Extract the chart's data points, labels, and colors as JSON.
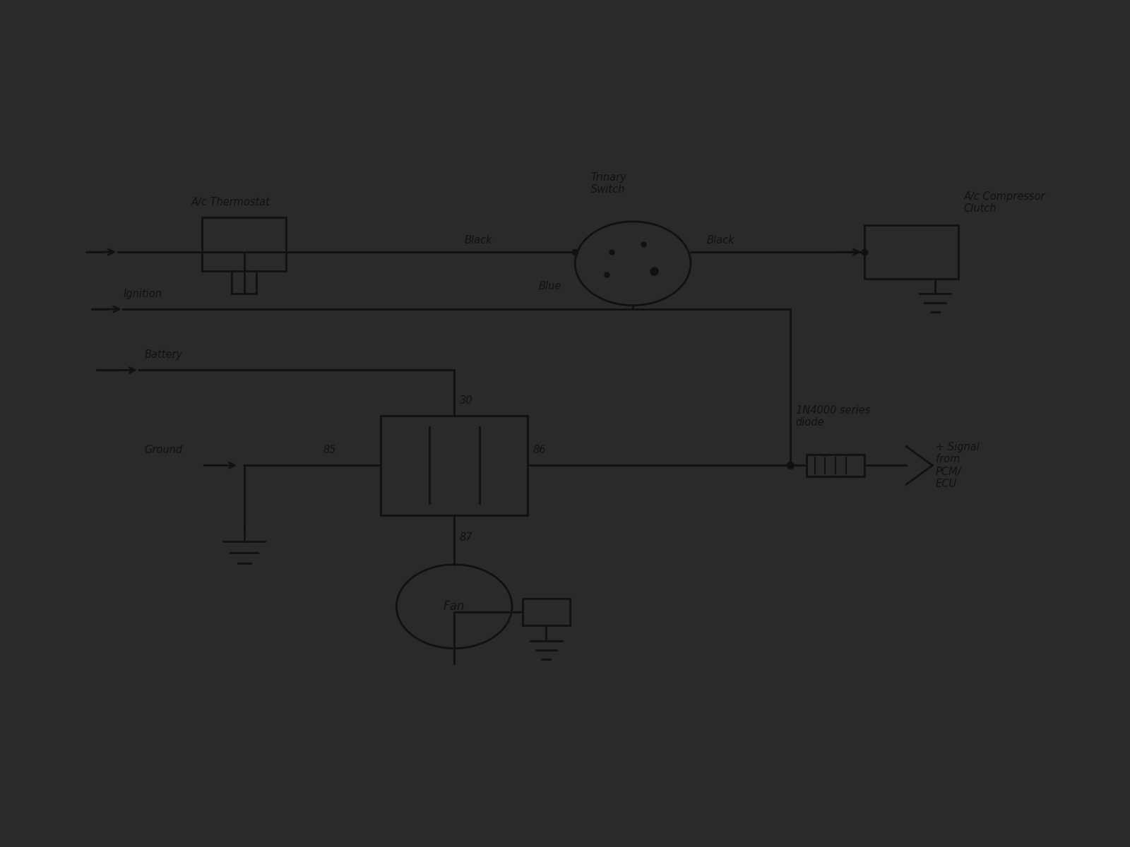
{
  "bg_color": "#2a2a2a",
  "paper_color": "#e0dede",
  "line_color": "#111111",
  "text_color": "#111111",
  "components": {
    "ac_thermostat_label": "A/c Thermostat",
    "trinary_switch_label": "Trinary\nSwitch",
    "ac_compressor_label": "A/c Compressor\nClutch",
    "ignition_label": "Ignition",
    "battery_label": "Battery",
    "ground_label": "Ground",
    "fan_label": "Fan",
    "diode_label": "1N4000 series\ndiode",
    "pcm_label": "+ Signal\nfrom\nPCM/\nECU",
    "black_label1": "Black",
    "black_label2": "Black",
    "blue_label": "Blue",
    "relay_30": "30",
    "relay_85": "85",
    "relay_86": "86",
    "relay_87": "87"
  }
}
